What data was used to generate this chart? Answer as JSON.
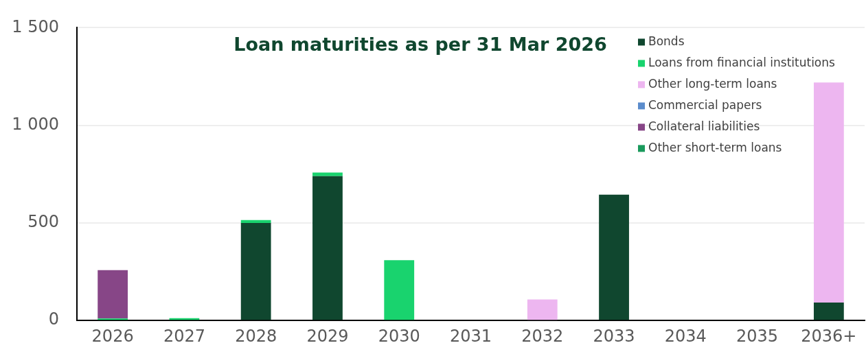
{
  "chart_data": {
    "type": "bar",
    "title": "Loan maturities as per 31 Mar 2026",
    "stacked": true,
    "categories": [
      "2026",
      "2027",
      "2028",
      "2029",
      "2030",
      "2031",
      "2032",
      "2033",
      "2034",
      "2035",
      "2036+"
    ],
    "series": [
      {
        "name": "Bonds",
        "color": "#10472f",
        "values": [
          0,
          0,
          500,
          740,
          0,
          0,
          0,
          645,
          0,
          0,
          92
        ]
      },
      {
        "name": "Loans from financial institutions",
        "color": "#19d36e",
        "values": [
          10,
          12,
          15,
          18,
          309,
          0,
          0,
          0,
          0,
          0,
          0
        ]
      },
      {
        "name": "Other long-term loans",
        "color": "#edb6f0",
        "values": [
          0,
          0,
          0,
          0,
          0,
          0,
          108,
          0,
          0,
          0,
          1127
        ]
      },
      {
        "name": "Commercial papers",
        "color": "#5b8ccc",
        "values": [
          0,
          0,
          0,
          0,
          0,
          0,
          0,
          0,
          0,
          0,
          0
        ]
      },
      {
        "name": "Collateral liabilities",
        "color": "#874687",
        "values": [
          248,
          0,
          0,
          0,
          0,
          0,
          0,
          0,
          0,
          0,
          0
        ]
      },
      {
        "name": "Other short-term loans",
        "color": "#1a9a5c",
        "values": [
          0,
          0,
          0,
          0,
          0,
          0,
          0,
          0,
          0,
          0,
          0
        ]
      }
    ],
    "ylim": [
      0,
      1500
    ],
    "yticks": [
      0,
      500,
      {
        "value": 1000,
        "label": "1 000"
      },
      {
        "value": 1500,
        "label": "1 500"
      }
    ],
    "grid": "y",
    "legend": "top right"
  }
}
